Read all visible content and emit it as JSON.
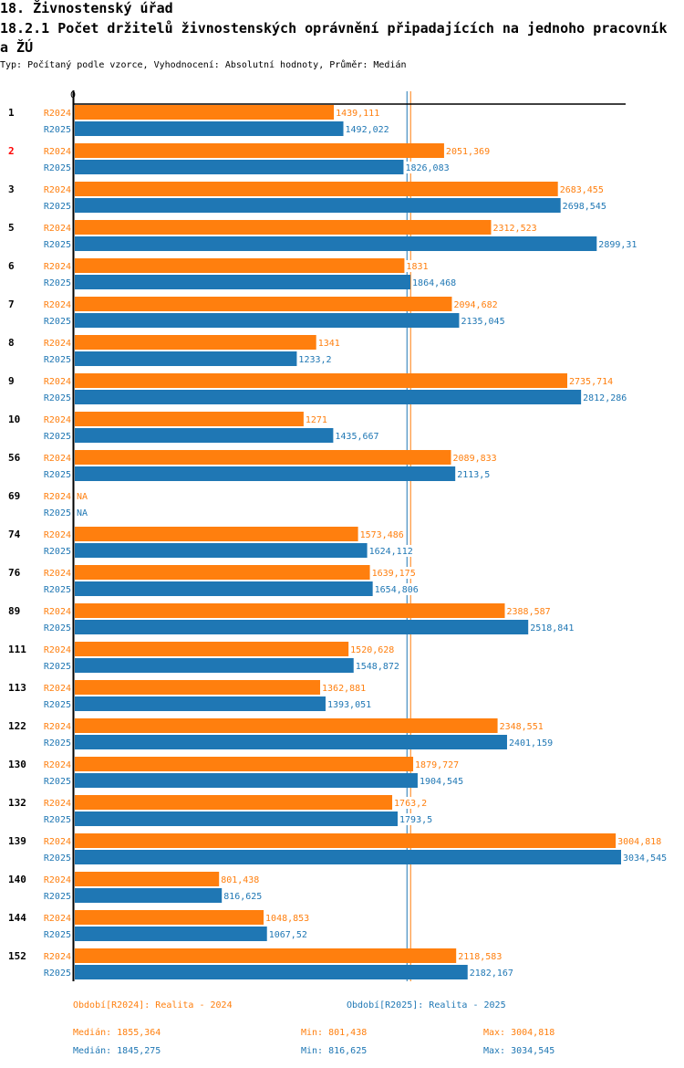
{
  "header": {
    "title": "18. Živnostenský úřad",
    "subtitle": "18.2.1 Počet držitelů živnostenských oprávnění připadajících na jednoho pracovník a ŽÚ",
    "meta": "Typ: Počítaný podle vzorce, Vyhodnocení: Absolutní hodnoty, Průměr: Medián"
  },
  "colors": {
    "R2024": "#ff7f0e",
    "R2025": "#1f77b4",
    "highlight_category": "#ff0000",
    "axis": "#000000"
  },
  "chart_data": {
    "type": "bar",
    "orientation": "horizontal",
    "title": "18.2.1 Počet držitelů živnostenských oprávnění připadajících na jednoho pracovník a ŽÚ",
    "xlabel": "",
    "ylabel": "",
    "x_tick_labels": [
      "0"
    ],
    "xlim": [
      0,
      3034.545
    ],
    "grid": false,
    "highlighted_categories": [
      "2"
    ],
    "categories": [
      "1",
      "2",
      "3",
      "5",
      "6",
      "7",
      "8",
      "9",
      "10",
      "56",
      "69",
      "74",
      "76",
      "89",
      "111",
      "113",
      "122",
      "130",
      "132",
      "139",
      "140",
      "144",
      "152"
    ],
    "series": [
      {
        "name": "R2024",
        "values": [
          1439.111,
          2051.369,
          2683.455,
          2312.523,
          1831,
          2094.682,
          1341,
          2735.714,
          1271,
          2089.833,
          null,
          1573.486,
          1639.175,
          2388.587,
          1520.628,
          1362.881,
          2348.551,
          1879.727,
          1763.2,
          3004.818,
          801.438,
          1048.853,
          2118.583
        ],
        "labels": [
          "1439,111",
          "2051,369",
          "2683,455",
          "2312,523",
          "1831",
          "2094,682",
          "1341",
          "2735,714",
          "1271",
          "2089,833",
          "NA",
          "1573,486",
          "1639,175",
          "2388,587",
          "1520,628",
          "1362,881",
          "2348,551",
          "1879,727",
          "1763,2",
          "3004,818",
          "801,438",
          "1048,853",
          "2118,583"
        ],
        "median": 1855.364
      },
      {
        "name": "R2025",
        "values": [
          1492.022,
          1826.083,
          2698.545,
          2899.31,
          1864.468,
          2135.045,
          1233.2,
          2812.286,
          1435.667,
          2113.5,
          null,
          1624.112,
          1654.806,
          2518.841,
          1548.872,
          1393.051,
          2401.159,
          1904.545,
          1793.5,
          3034.545,
          816.625,
          1067.52,
          2182.167
        ],
        "labels": [
          "1492,022",
          "1826,083",
          "2698,545",
          "2899,31",
          "1864,468",
          "2135,045",
          "1233,2",
          "2812,286",
          "1435,667",
          "2113,5",
          "NA",
          "1624,112",
          "1654,806",
          "2518,841",
          "1548,872",
          "1393,051",
          "2401,159",
          "1904,545",
          "1793,5",
          "3034,545",
          "816,625",
          "1067,52",
          "2182,167"
        ],
        "median": 1845.275
      }
    ]
  },
  "footer": {
    "legend_2024": "Období[R2024]: Realita - 2024",
    "legend_2025": "Období[R2025]: Realita - 2025",
    "stats_2024": {
      "median": "Medián: 1855,364",
      "min": "Min: 801,438",
      "max": "Max: 3004,818"
    },
    "stats_2025": {
      "median": "Medián: 1845,275",
      "min": "Min: 816,625",
      "max": "Max: 3034,545"
    }
  }
}
